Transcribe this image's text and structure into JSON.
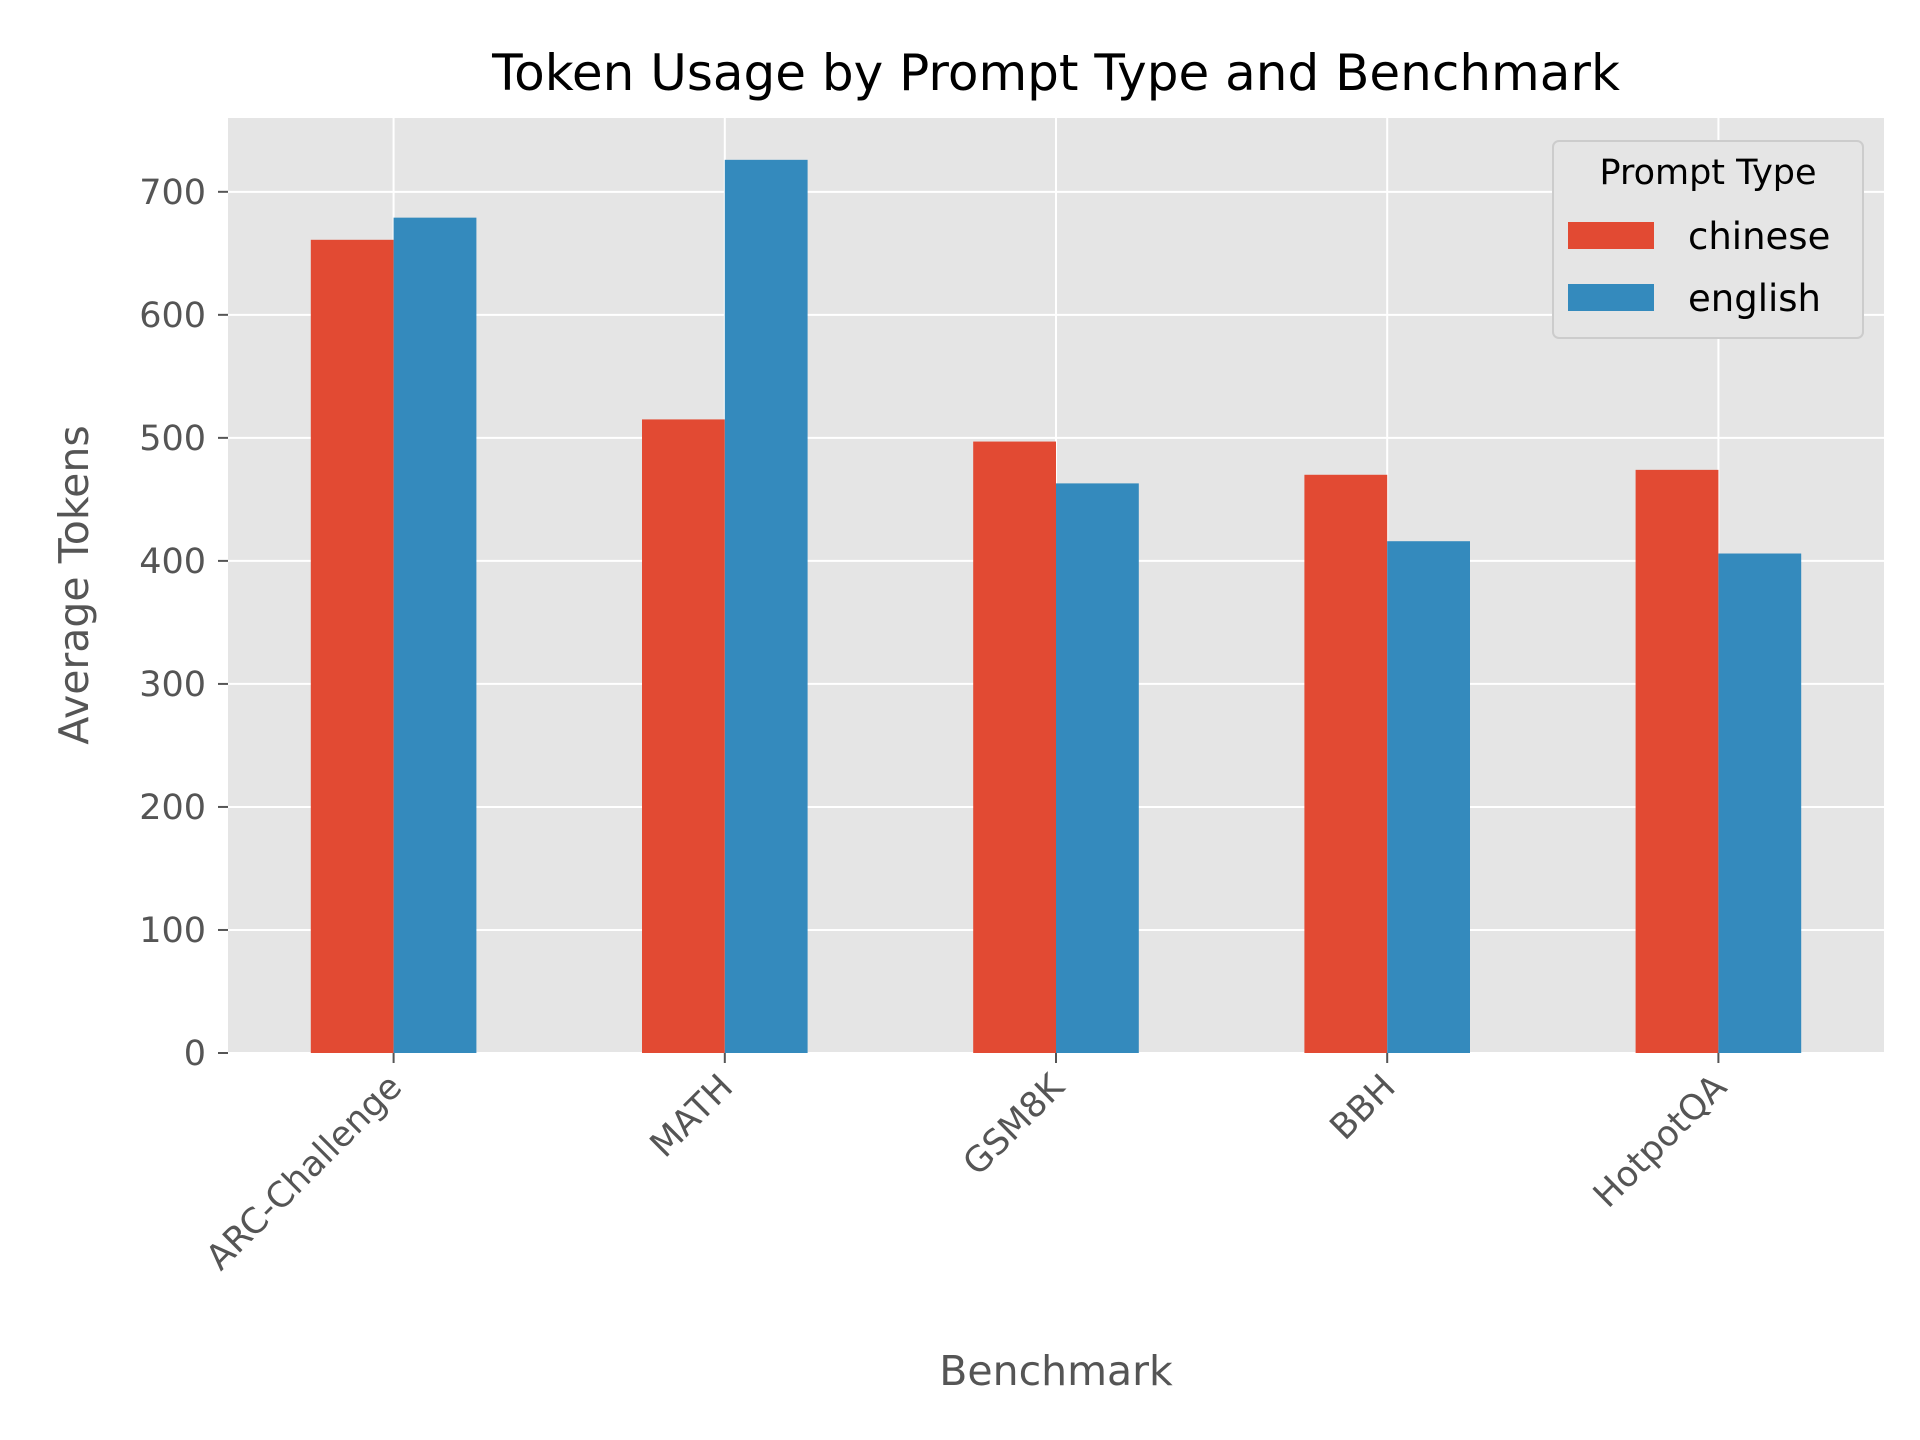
{
  "chart_data": {
    "type": "bar",
    "title": "Token Usage by Prompt Type and Benchmark",
    "xlabel": "Benchmark",
    "ylabel": "Average Tokens",
    "categories": [
      "ARC-Challenge",
      "MATH",
      "GSM8K",
      "BBH",
      "HotpotQA"
    ],
    "series": [
      {
        "name": "chinese",
        "color": "#E24A33",
        "values": [
          661,
          515,
          497,
          470,
          474
        ]
      },
      {
        "name": "english",
        "color": "#348ABD",
        "values": [
          679,
          726,
          463,
          416,
          406
        ]
      }
    ],
    "ylim": [
      0,
      760
    ],
    "yticks": [
      0,
      100,
      200,
      300,
      400,
      500,
      600,
      700
    ],
    "grid": true,
    "legend": {
      "title": "Prompt Type",
      "position": "top-right"
    },
    "colors": {
      "background": "#E5E5E5",
      "grid": "#FFFFFF",
      "text": "#555555"
    }
  }
}
